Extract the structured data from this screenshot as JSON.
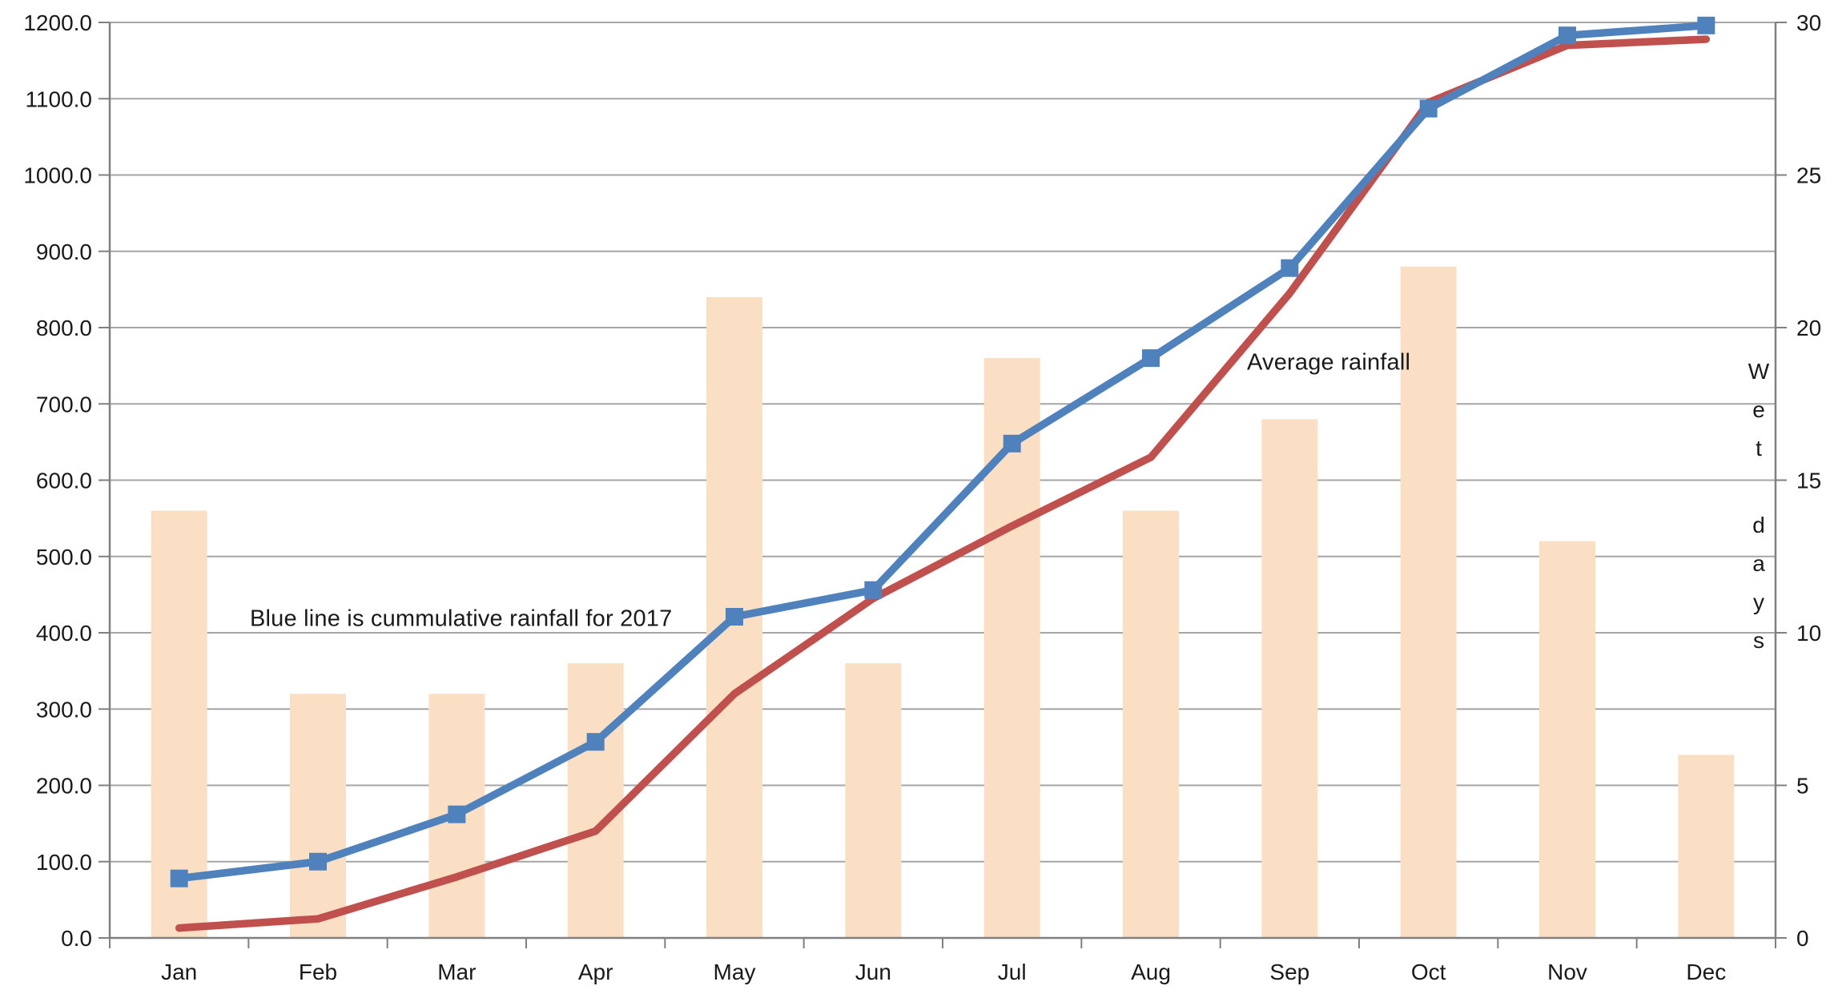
{
  "chart_data": {
    "type": "combo-bar-line",
    "title": "",
    "categories": [
      "Jan",
      "Feb",
      "Mar",
      "Apr",
      "May",
      "Jun",
      "Jul",
      "Aug",
      "Sep",
      "Oct",
      "Nov",
      "Dec"
    ],
    "series": [
      {
        "name": "Wet days",
        "type": "bar",
        "axis": "right",
        "color": "#FBDFC4",
        "values": [
          14,
          8,
          8,
          9,
          21,
          9,
          19,
          14,
          17,
          22,
          13,
          6
        ]
      },
      {
        "name": "Cummulative rainfall for 2017",
        "type": "line",
        "axis": "left",
        "color": "#4F81BD",
        "marker": "square",
        "values": [
          78,
          100,
          162,
          257,
          421,
          456,
          648,
          760,
          878,
          1087,
          1183,
          1196
        ]
      },
      {
        "name": "Average rainfall",
        "type": "line",
        "axis": "left",
        "color": "#C0504D",
        "marker": "none",
        "values": [
          13,
          25,
          80,
          140,
          320,
          445,
          540,
          630,
          845,
          1095,
          1170,
          1178
        ]
      }
    ],
    "left_axis": {
      "min": 0,
      "max": 1200,
      "step": 100,
      "tick_labels": [
        "0.0",
        "100.0",
        "200.0",
        "300.0",
        "400.0",
        "500.0",
        "600.0",
        "700.0",
        "800.0",
        "900.0",
        "1000.0",
        "1100.0",
        "1200.0"
      ]
    },
    "right_axis": {
      "min": 0,
      "max": 30,
      "step": 5,
      "title": "Wet days",
      "tick_labels": [
        "0",
        "5",
        "10",
        "15",
        "20",
        "25",
        "30"
      ]
    },
    "xlabel": "",
    "grid": true,
    "legend": "none",
    "annotations": [
      {
        "text": "Blue line is cummulative rainfall for 2017"
      },
      {
        "text": "Average rainfall"
      }
    ],
    "colors": {
      "grid": "#A6A6A6",
      "axis": "#808080",
      "text": "#1a1a1a",
      "bar": "#FBDFC4",
      "line_2017": "#4F81BD",
      "line_avg": "#C0504D"
    }
  }
}
